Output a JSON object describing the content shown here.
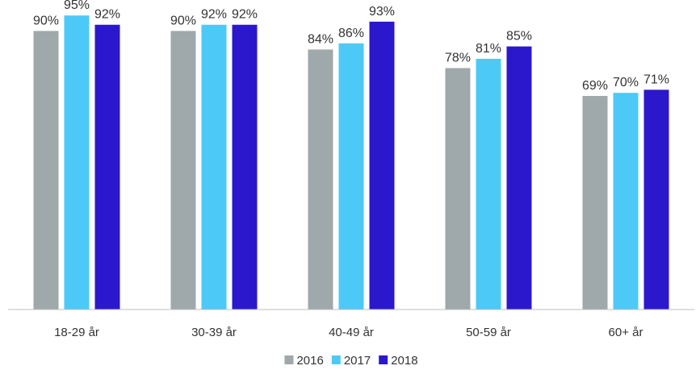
{
  "chart_data": {
    "type": "bar",
    "title": "",
    "xlabel": "",
    "ylabel": "",
    "ylim": [
      0,
      100
    ],
    "grid": false,
    "legend_placement": "bottom-center",
    "value_suffix": "%",
    "categories": [
      "18-29 år",
      "30-39 år",
      "40-49 år",
      "50-59 år",
      "60+ år"
    ],
    "series": [
      {
        "name": "2016",
        "color": "#9fa8ab",
        "values": [
          90,
          90,
          84,
          78,
          69
        ]
      },
      {
        "name": "2017",
        "color": "#4dc9f8",
        "values": [
          95,
          92,
          86,
          81,
          70
        ]
      },
      {
        "name": "2018",
        "color": "#2b18cc",
        "values": [
          92,
          92,
          93,
          85,
          71
        ]
      }
    ]
  }
}
